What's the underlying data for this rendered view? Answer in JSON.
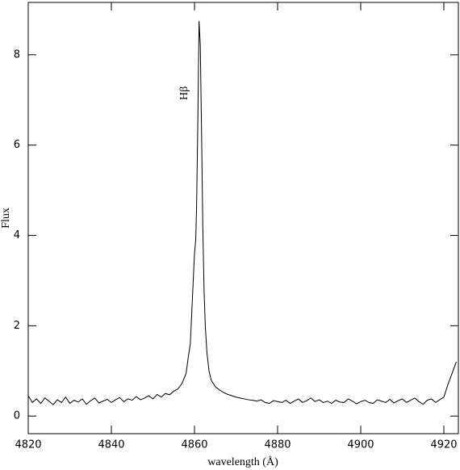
{
  "chart_data": {
    "type": "line",
    "xlabel": "wavelength (Å)",
    "ylabel": "Flux",
    "annotation": {
      "text": "Hβ",
      "x": 4857.6,
      "y": 7.15
    },
    "xlim": [
      4820,
      4923.5
    ],
    "ylim": [
      -0.39,
      9.16
    ],
    "xticks": [
      4820,
      4840,
      4860,
      4880,
      4900,
      4920
    ],
    "yticks": [
      0,
      2,
      4,
      6,
      8
    ],
    "series": [
      {
        "color": "#000000",
        "x": [
          4820,
          4821,
          4822,
          4823,
          4824,
          4825,
          4826,
          4827,
          4828,
          4829,
          4830,
          4831,
          4832,
          4833,
          4834,
          4835,
          4836,
          4837,
          4838,
          4839,
          4840,
          4841,
          4842,
          4843,
          4844,
          4845,
          4846,
          4847,
          4848,
          4849,
          4850,
          4851,
          4852,
          4853,
          4854,
          4855,
          4856,
          4857,
          4858,
          4858.5,
          4859,
          4859.5,
          4860,
          4860.3,
          4860.5,
          4860.8,
          4861.1,
          4861.4,
          4861.7,
          4862,
          4862.3,
          4862.6,
          4863,
          4863.5,
          4864,
          4865,
          4866,
          4867,
          4868,
          4869,
          4870,
          4871,
          4872,
          4873,
          4874,
          4875,
          4876,
          4877,
          4878,
          4879,
          4880,
          4881,
          4882,
          4883,
          4884,
          4885,
          4886,
          4887,
          4888,
          4889,
          4890,
          4891,
          4892,
          4893,
          4894,
          4895,
          4896,
          4897,
          4898,
          4899,
          4900,
          4901,
          4902,
          4903,
          4904,
          4905,
          4906,
          4907,
          4908,
          4909,
          4910,
          4911,
          4912,
          4913,
          4914,
          4915,
          4916,
          4917,
          4918,
          4919,
          4920,
          4921,
          4922,
          4923
        ],
        "values": [
          0.45,
          0.3,
          0.38,
          0.28,
          0.4,
          0.33,
          0.25,
          0.36,
          0.3,
          0.42,
          0.28,
          0.35,
          0.31,
          0.38,
          0.26,
          0.34,
          0.4,
          0.29,
          0.33,
          0.37,
          0.3,
          0.36,
          0.41,
          0.32,
          0.38,
          0.35,
          0.43,
          0.36,
          0.4,
          0.45,
          0.38,
          0.48,
          0.42,
          0.5,
          0.47,
          0.55,
          0.6,
          0.72,
          0.95,
          1.3,
          1.6,
          2.6,
          3.6,
          3.9,
          4.6,
          6.5,
          8.75,
          8.2,
          6.3,
          4.2,
          2.8,
          2.0,
          1.4,
          1.0,
          0.8,
          0.65,
          0.58,
          0.52,
          0.48,
          0.45,
          0.42,
          0.4,
          0.38,
          0.36,
          0.35,
          0.33,
          0.36,
          0.3,
          0.28,
          0.34,
          0.32,
          0.3,
          0.35,
          0.28,
          0.33,
          0.38,
          0.3,
          0.34,
          0.4,
          0.32,
          0.36,
          0.3,
          0.33,
          0.28,
          0.35,
          0.31,
          0.3,
          0.38,
          0.33,
          0.27,
          0.32,
          0.35,
          0.3,
          0.28,
          0.36,
          0.33,
          0.3,
          0.37,
          0.29,
          0.34,
          0.38,
          0.3,
          0.35,
          0.4,
          0.32,
          0.26,
          0.35,
          0.38,
          0.3,
          0.36,
          0.42,
          0.7,
          0.95,
          1.2
        ]
      }
    ]
  }
}
